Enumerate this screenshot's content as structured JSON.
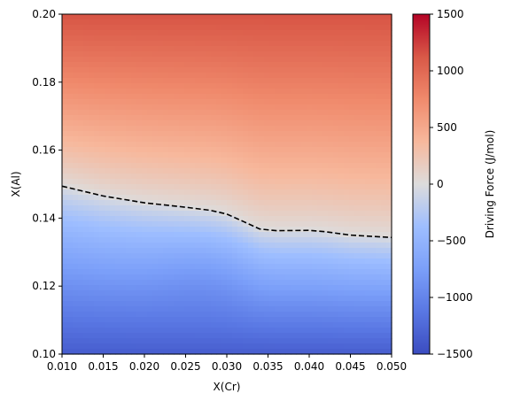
{
  "chart_data": {
    "type": "heatmap",
    "xlabel": "X(Cr)",
    "ylabel": "X(Al)",
    "xlim": [
      0.01,
      0.05
    ],
    "ylim": [
      0.1,
      0.2
    ],
    "x_ticks": [
      "0.010",
      "0.015",
      "0.020",
      "0.025",
      "0.030",
      "0.035",
      "0.040",
      "0.045",
      "0.050"
    ],
    "y_ticks": [
      "0.10",
      "0.12",
      "0.14",
      "0.16",
      "0.18",
      "0.20"
    ],
    "colorbar": {
      "label": "Driving Force (J/mol)",
      "range": [
        -1500,
        1500
      ],
      "ticks": [
        "−1500",
        "−1000",
        "−500",
        "0",
        "500",
        "1000",
        "1500"
      ],
      "colormap": "coolwarm"
    },
    "zero_contour": {
      "style": "dashed",
      "color": "#000000",
      "x": [
        0.01,
        0.015,
        0.02,
        0.025,
        0.028,
        0.03,
        0.032,
        0.034,
        0.036,
        0.04,
        0.042,
        0.045,
        0.05
      ],
      "y": [
        0.1494,
        0.1465,
        0.1445,
        0.1432,
        0.1423,
        0.1412,
        0.139,
        0.1368,
        0.1363,
        0.1364,
        0.136,
        0.135,
        0.1343
      ]
    },
    "field_summary": {
      "top_value_approx": 1150,
      "bottom_value_approx": -1350,
      "low_region_center": {
        "x": 0.027,
        "y": 0.125
      }
    }
  }
}
